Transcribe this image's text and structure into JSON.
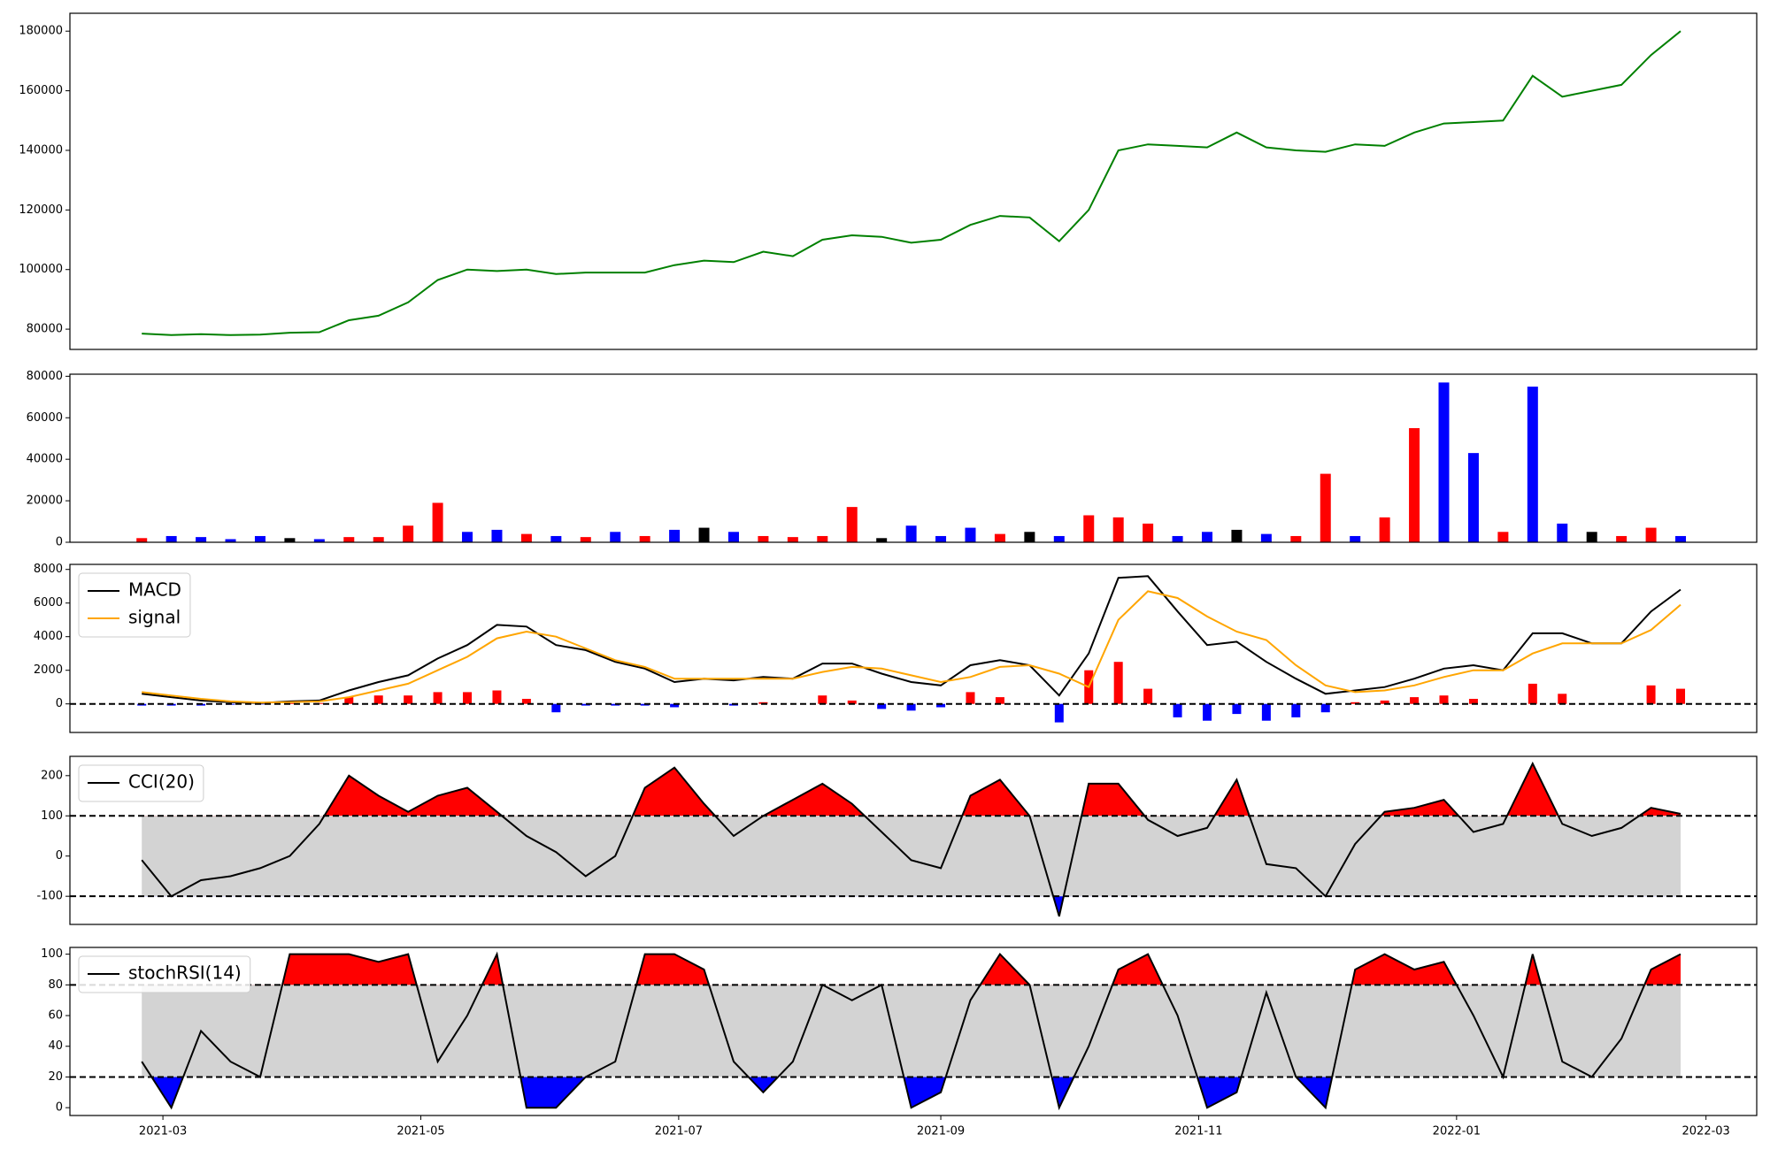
{
  "chart_data": [
    {
      "type": "line",
      "x": [
        "2021-02-24",
        "2021-03-03",
        "2021-03-10",
        "2021-03-17",
        "2021-03-24",
        "2021-03-31",
        "2021-04-07",
        "2021-04-14",
        "2021-04-21",
        "2021-04-28",
        "2021-05-05",
        "2021-05-12",
        "2021-05-19",
        "2021-05-26",
        "2021-06-02",
        "2021-06-09",
        "2021-06-16",
        "2021-06-23",
        "2021-06-30",
        "2021-07-07",
        "2021-07-14",
        "2021-07-21",
        "2021-07-28",
        "2021-08-04",
        "2021-08-11",
        "2021-08-18",
        "2021-08-25",
        "2021-09-01",
        "2021-09-08",
        "2021-09-15",
        "2021-09-22",
        "2021-09-29",
        "2021-10-06",
        "2021-10-13",
        "2021-10-20",
        "2021-10-27",
        "2021-11-03",
        "2021-11-10",
        "2021-11-17",
        "2021-11-24",
        "2021-12-01",
        "2021-12-08",
        "2021-12-15",
        "2021-12-22",
        "2021-12-29",
        "2022-01-05",
        "2022-01-12",
        "2022-01-19",
        "2022-01-26",
        "2022-02-02",
        "2022-02-09",
        "2022-02-16",
        "2022-02-23"
      ],
      "series": [
        {
          "color": "green",
          "values": [
            78500,
            78000,
            78300,
            78000,
            78200,
            78800,
            79000,
            83000,
            84500,
            89000,
            96500,
            100000,
            99500,
            100000,
            98500,
            99000,
            99000,
            99000,
            101500,
            103000,
            102500,
            106000,
            104500,
            110000,
            111500,
            111000,
            109000,
            110000,
            115000,
            118000,
            117500,
            109500,
            120000,
            140000,
            142000,
            141500,
            141000,
            146000,
            141000,
            140000,
            139500,
            142000,
            141500,
            146000,
            149000,
            149500,
            150000,
            165000,
            158000,
            160000,
            162000,
            172000,
            180000
          ]
        }
      ],
      "xlim": [
        "2021-02-07",
        "2022-03-13"
      ],
      "ylim": [
        73200,
        186000
      ],
      "yticks": [
        80000,
        100000,
        120000,
        140000,
        160000,
        180000
      ]
    },
    {
      "type": "bar",
      "x": [
        "2021-02-24",
        "2021-03-03",
        "2021-03-10",
        "2021-03-17",
        "2021-03-24",
        "2021-03-31",
        "2021-04-07",
        "2021-04-14",
        "2021-04-21",
        "2021-04-28",
        "2021-05-05",
        "2021-05-12",
        "2021-05-19",
        "2021-05-26",
        "2021-06-02",
        "2021-06-09",
        "2021-06-16",
        "2021-06-23",
        "2021-06-30",
        "2021-07-07",
        "2021-07-14",
        "2021-07-21",
        "2021-07-28",
        "2021-08-04",
        "2021-08-11",
        "2021-08-18",
        "2021-08-25",
        "2021-09-01",
        "2021-09-08",
        "2021-09-15",
        "2021-09-22",
        "2021-09-29",
        "2021-10-06",
        "2021-10-13",
        "2021-10-20",
        "2021-10-27",
        "2021-11-03",
        "2021-11-10",
        "2021-11-17",
        "2021-11-24",
        "2021-12-01",
        "2021-12-08",
        "2021-12-15",
        "2021-12-22",
        "2021-12-29",
        "2022-01-05",
        "2022-01-12",
        "2022-01-19",
        "2022-01-26",
        "2022-02-02",
        "2022-02-09",
        "2022-02-16",
        "2022-02-23"
      ],
      "values": [
        2000,
        3000,
        2500,
        1500,
        3000,
        2000,
        1500,
        2500,
        2500,
        8000,
        19000,
        5000,
        6000,
        4000,
        3000,
        2500,
        5000,
        3000,
        6000,
        7000,
        5000,
        3000,
        2500,
        3000,
        17000,
        2000,
        8000,
        3000,
        7000,
        4000,
        5000,
        3000,
        13000,
        12000,
        9000,
        3000,
        5000,
        6000,
        4000,
        3000,
        33000,
        3000,
        12000,
        55000,
        77000,
        43000,
        5000,
        75000,
        9000,
        5000,
        3000,
        7000,
        3000
      ],
      "colors": [
        "red",
        "blue",
        "blue",
        "blue",
        "blue",
        "black",
        "blue",
        "red",
        "red",
        "red",
        "red",
        "blue",
        "blue",
        "red",
        "blue",
        "red",
        "blue",
        "red",
        "blue",
        "black",
        "blue",
        "red",
        "red",
        "red",
        "red",
        "black",
        "blue",
        "blue",
        "blue",
        "red",
        "black",
        "blue",
        "red",
        "red",
        "red",
        "blue",
        "blue",
        "black",
        "blue",
        "red",
        "red",
        "blue",
        "red",
        "red",
        "blue",
        "blue",
        "red",
        "blue",
        "blue",
        "black",
        "red",
        "red",
        "blue"
      ],
      "xlim": [
        "2021-02-07",
        "2022-03-13"
      ],
      "ylim": [
        0,
        81000
      ],
      "yticks": [
        0,
        20000,
        40000,
        60000,
        80000
      ]
    },
    {
      "type": "line",
      "x": [
        "2021-02-24",
        "2021-03-03",
        "2021-03-10",
        "2021-03-17",
        "2021-03-24",
        "2021-03-31",
        "2021-04-07",
        "2021-04-14",
        "2021-04-21",
        "2021-04-28",
        "2021-05-05",
        "2021-05-12",
        "2021-05-19",
        "2021-05-26",
        "2021-06-02",
        "2021-06-09",
        "2021-06-16",
        "2021-06-23",
        "2021-06-30",
        "2021-07-07",
        "2021-07-14",
        "2021-07-21",
        "2021-07-28",
        "2021-08-04",
        "2021-08-11",
        "2021-08-18",
        "2021-08-25",
        "2021-09-01",
        "2021-09-08",
        "2021-09-15",
        "2021-09-22",
        "2021-09-29",
        "2021-10-06",
        "2021-10-13",
        "2021-10-20",
        "2021-10-27",
        "2021-11-03",
        "2021-11-10",
        "2021-11-17",
        "2021-11-24",
        "2021-12-01",
        "2021-12-08",
        "2021-12-15",
        "2021-12-22",
        "2021-12-29",
        "2022-01-05",
        "2022-01-12",
        "2022-01-19",
        "2022-01-26",
        "2022-02-02",
        "2022-02-09",
        "2022-02-16",
        "2022-02-23"
      ],
      "series": [
        {
          "name": "MACD",
          "color": "black",
          "values": [
            600,
            400,
            200,
            100,
            50,
            150,
            200,
            800,
            1300,
            1700,
            2700,
            3500,
            4700,
            4600,
            3500,
            3200,
            2500,
            2100,
            1300,
            1500,
            1400,
            1600,
            1500,
            2400,
            2400,
            1800,
            1300,
            1100,
            2300,
            2600,
            2300,
            500,
            3000,
            7500,
            7600,
            5500,
            3500,
            3700,
            2500,
            1500,
            600,
            800,
            1000,
            1500,
            2100,
            2300,
            2000,
            4200,
            4200,
            3600,
            3600,
            5500,
            6800
          ]
        },
        {
          "name": "signal",
          "color": "orange",
          "values": [
            700,
            500,
            300,
            150,
            80,
            100,
            150,
            400,
            800,
            1200,
            2000,
            2800,
            3900,
            4300,
            4000,
            3300,
            2600,
            2200,
            1500,
            1500,
            1500,
            1500,
            1500,
            1900,
            2200,
            2100,
            1700,
            1300,
            1600,
            2200,
            2300,
            1800,
            1000,
            5000,
            6700,
            6300,
            5200,
            4300,
            3800,
            2300,
            1100,
            700,
            800,
            1100,
            1600,
            2000,
            2000,
            3000,
            3600,
            3600,
            3600,
            4400,
            5900
          ]
        }
      ],
      "histogram": {
        "pos_color": "red",
        "neg_color": "blue",
        "values": [
          -100,
          -100,
          -100,
          -50,
          -30,
          50,
          50,
          400,
          500,
          500,
          700,
          700,
          800,
          300,
          -500,
          -100,
          -100,
          -100,
          -200,
          0,
          -100,
          100,
          0,
          500,
          200,
          -300,
          -400,
          -200,
          700,
          400,
          0,
          -1100,
          2000,
          2500,
          900,
          -800,
          -1000,
          -600,
          -1000,
          -800,
          -500,
          100,
          200,
          400,
          500,
          300,
          0,
          1200,
          600,
          0,
          0,
          1100,
          900
        ]
      },
      "zero_line": 0,
      "legend": "upper left",
      "xlim": [
        "2021-02-07",
        "2022-03-13"
      ],
      "ylim": [
        -1700,
        8300
      ],
      "yticks": [
        0,
        2000,
        4000,
        6000,
        8000
      ]
    },
    {
      "type": "band",
      "x": [
        "2021-02-24",
        "2021-03-03",
        "2021-03-10",
        "2021-03-17",
        "2021-03-24",
        "2021-03-31",
        "2021-04-07",
        "2021-04-14",
        "2021-04-21",
        "2021-04-28",
        "2021-05-05",
        "2021-05-12",
        "2021-05-19",
        "2021-05-26",
        "2021-06-02",
        "2021-06-09",
        "2021-06-16",
        "2021-06-23",
        "2021-06-30",
        "2021-07-07",
        "2021-07-14",
        "2021-07-21",
        "2021-07-28",
        "2021-08-04",
        "2021-08-11",
        "2021-08-18",
        "2021-08-25",
        "2021-09-01",
        "2021-09-08",
        "2021-09-15",
        "2021-09-22",
        "2021-09-29",
        "2021-10-06",
        "2021-10-13",
        "2021-10-20",
        "2021-10-27",
        "2021-11-03",
        "2021-11-10",
        "2021-11-17",
        "2021-11-24",
        "2021-12-01",
        "2021-12-08",
        "2021-12-15",
        "2021-12-22",
        "2021-12-29",
        "2022-01-05",
        "2022-01-12",
        "2022-01-19",
        "2022-01-26",
        "2022-02-02",
        "2022-02-09",
        "2022-02-16",
        "2022-02-23"
      ],
      "series": [
        {
          "name": "CCI(20)",
          "color": "black",
          "values": [
            -10,
            -100,
            -60,
            -50,
            -30,
            0,
            80,
            200,
            150,
            110,
            150,
            170,
            110,
            50,
            10,
            -50,
            0,
            170,
            220,
            130,
            50,
            100,
            140,
            180,
            130,
            60,
            -10,
            -30,
            150,
            190,
            100,
            -150,
            180,
            180,
            90,
            50,
            70,
            190,
            -20,
            -30,
            -100,
            30,
            110,
            120,
            140,
            60,
            80,
            230,
            80,
            50,
            70,
            120,
            105
          ]
        }
      ],
      "lower": -100,
      "upper": 100,
      "upper_color": "red",
      "lower_color": "blue",
      "band_color": "lightgray",
      "legend": "upper left",
      "xlim": [
        "2021-02-07",
        "2022-03-13"
      ],
      "ylim": [
        -170,
        248
      ],
      "yticks": [
        -100,
        0,
        100,
        200
      ]
    },
    {
      "type": "band",
      "x": [
        "2021-02-24",
        "2021-03-03",
        "2021-03-10",
        "2021-03-17",
        "2021-03-24",
        "2021-03-31",
        "2021-04-07",
        "2021-04-14",
        "2021-04-21",
        "2021-04-28",
        "2021-05-05",
        "2021-05-12",
        "2021-05-19",
        "2021-05-26",
        "2021-06-02",
        "2021-06-09",
        "2021-06-16",
        "2021-06-23",
        "2021-06-30",
        "2021-07-07",
        "2021-07-14",
        "2021-07-21",
        "2021-07-28",
        "2021-08-04",
        "2021-08-11",
        "2021-08-18",
        "2021-08-25",
        "2021-09-01",
        "2021-09-08",
        "2021-09-15",
        "2021-09-22",
        "2021-09-29",
        "2021-10-06",
        "2021-10-13",
        "2021-10-20",
        "2021-10-27",
        "2021-11-03",
        "2021-11-10",
        "2021-11-17",
        "2021-11-24",
        "2021-12-01",
        "2021-12-08",
        "2021-12-15",
        "2021-12-22",
        "2021-12-29",
        "2022-01-05",
        "2022-01-12",
        "2022-01-19",
        "2022-01-26",
        "2022-02-02",
        "2022-02-09",
        "2022-02-16",
        "2022-02-23"
      ],
      "series": [
        {
          "name": "stochRSI(14)",
          "color": "black",
          "values": [
            30,
            0,
            50,
            30,
            20,
            100,
            100,
            100,
            95,
            100,
            30,
            60,
            100,
            0,
            0,
            20,
            30,
            100,
            100,
            90,
            30,
            10,
            30,
            80,
            70,
            80,
            0,
            10,
            70,
            100,
            80,
            0,
            40,
            90,
            100,
            60,
            0,
            10,
            75,
            20,
            0,
            90,
            100,
            90,
            95,
            60,
            20,
            100,
            30,
            20,
            45,
            90,
            100
          ]
        }
      ],
      "lower": 20,
      "upper": 80,
      "upper_color": "red",
      "lower_color": "blue",
      "band_color": "lightgray",
      "legend": "upper left",
      "xlim": [
        "2021-02-07",
        "2022-03-13"
      ],
      "ylim": [
        -5.1,
        104.4
      ],
      "yticks": [
        0,
        20,
        40,
        60,
        80,
        100
      ],
      "xticks": [
        {
          "value": "2021-03-01",
          "label": "2021-03"
        },
        {
          "value": "2021-05-01",
          "label": "2021-05"
        },
        {
          "value": "2021-07-01",
          "label": "2021-07"
        },
        {
          "value": "2021-09-01",
          "label": "2021-09"
        },
        {
          "value": "2021-11-01",
          "label": "2021-11"
        },
        {
          "value": "2022-01-01",
          "label": "2022-01"
        },
        {
          "value": "2022-03-01",
          "label": "2022-03"
        }
      ]
    }
  ]
}
